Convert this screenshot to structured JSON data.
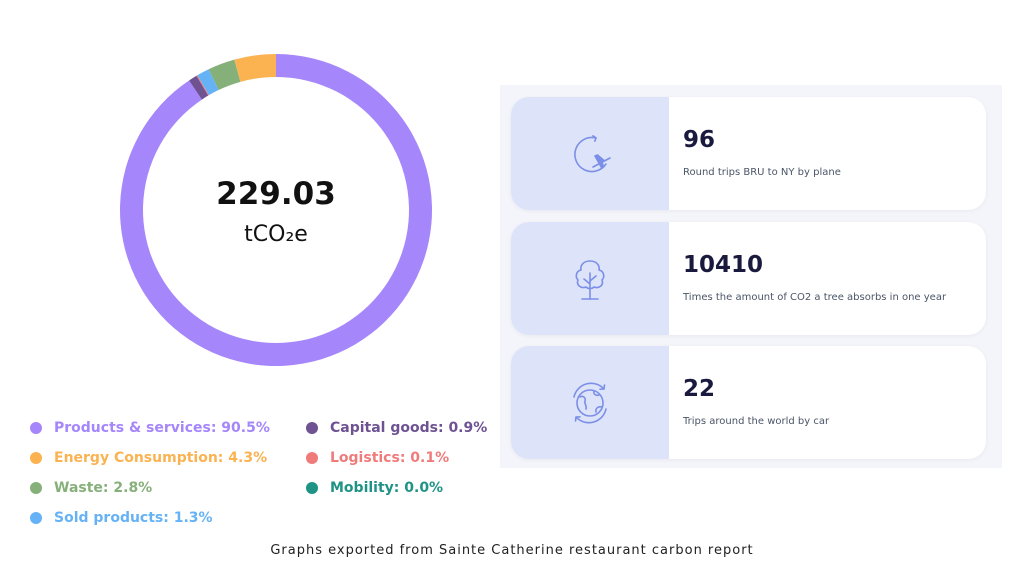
{
  "colors": {
    "products_services": "#a586fb",
    "capital_goods": "#6e5292",
    "energy_consumption": "#fbb351",
    "logistics": "#f07b7b",
    "waste": "#86b07a",
    "mobility": "#1f9385",
    "sold_products": "#66b2f6",
    "icon": "#7b8fe8",
    "icon_box": "#dde3f8"
  },
  "chart_data": {
    "type": "pie",
    "donut": true,
    "center_value": "229.03",
    "center_unit": "tCO₂e",
    "series": [
      {
        "name": "Products & services",
        "value": 90.5,
        "label": "Products & services: 90.5%",
        "color": "#a586fb"
      },
      {
        "name": "Capital goods",
        "value": 0.9,
        "label": "Capital goods: 0.9%",
        "color": "#6e5292"
      },
      {
        "name": "Logistics",
        "value": 0.1,
        "label": "Logistics: 0.1%",
        "color": "#f07b7b"
      },
      {
        "name": "Sold products",
        "value": 1.3,
        "label": "Sold products: 1.3%",
        "color": "#66b2f6"
      },
      {
        "name": "Waste",
        "value": 2.8,
        "label": "Waste: 2.8%",
        "color": "#86b07a"
      },
      {
        "name": "Energy Consumption",
        "value": 4.3,
        "label": "Energy Consumption: 4.3%",
        "color": "#fbb351"
      },
      {
        "name": "Mobility",
        "value": 0.0,
        "label": "Mobility: 0.0%",
        "color": "#1f9385"
      }
    ],
    "legend_placement": "bottom"
  },
  "equivalents": [
    {
      "value": "96",
      "description": "Round trips BRU to NY by plane",
      "icon": "plane-orbit-icon"
    },
    {
      "value": "10410",
      "description": "Times the amount of CO2 a tree absorbs in one year",
      "icon": "tree-icon"
    },
    {
      "value": "22",
      "description": "Trips around the world by car",
      "icon": "globe-icon"
    }
  ],
  "caption": "Graphs exported from Sainte Catherine restaurant carbon report"
}
